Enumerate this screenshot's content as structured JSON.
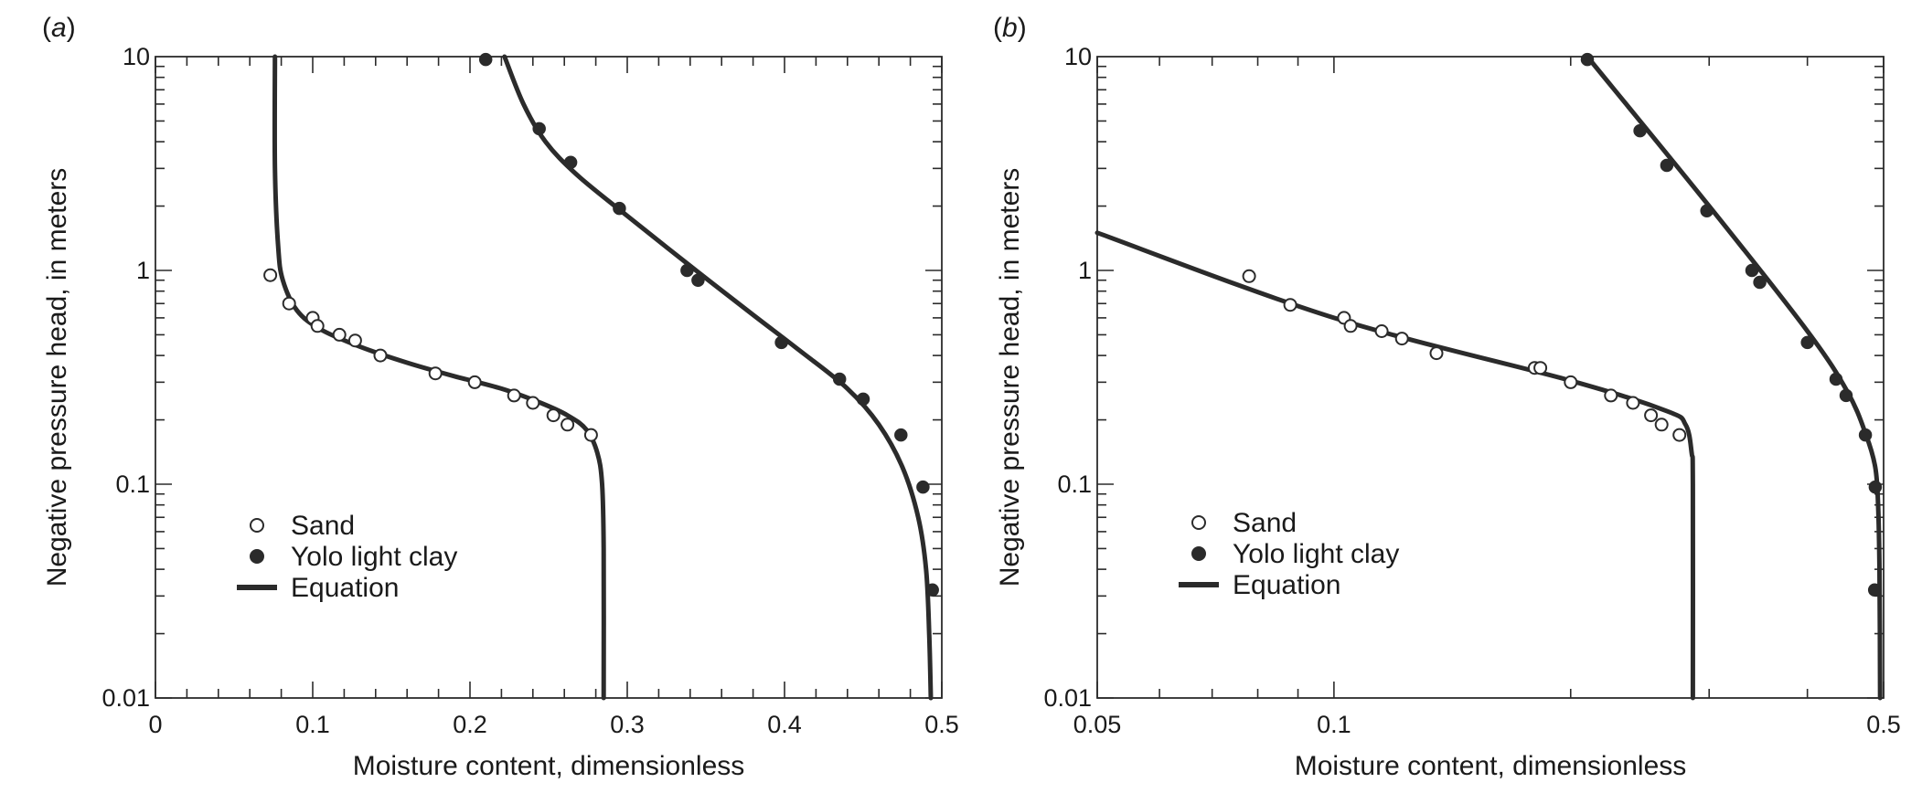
{
  "colors": {
    "ink": "#2b2b2b",
    "background": "#ffffff"
  },
  "chart_data": [
    {
      "panel_label": "a",
      "type": "scatter",
      "x_scale": "linear",
      "y_scale": "log",
      "xlabel": "Moisture content, dimensionless",
      "ylabel": "Negative pressure head, in meters",
      "xlim": [
        0,
        0.5
      ],
      "ylim": [
        0.01,
        10
      ],
      "x_ticks": [
        0,
        0.1,
        0.2,
        0.3,
        0.4,
        0.5
      ],
      "x_tick_labels": [
        "0",
        "0.1",
        "0.2",
        "0.3",
        "0.4",
        "0.5"
      ],
      "y_ticks": [
        0.01,
        0.1,
        1,
        10
      ],
      "y_tick_labels": [
        "0.01",
        "0.1",
        "1",
        "10"
      ],
      "grid": false,
      "legend_position": "bottom-left",
      "legend": [
        {
          "label": "Sand",
          "marker": "open-circle"
        },
        {
          "label": "Yolo light clay",
          "marker": "filled-circle"
        },
        {
          "label": "Equation",
          "marker": "line"
        }
      ],
      "series": [
        {
          "name": "Sand",
          "marker": "open-circle",
          "points": [
            [
              0.073,
              0.95
            ],
            [
              0.085,
              0.7
            ],
            [
              0.1,
              0.6
            ],
            [
              0.103,
              0.55
            ],
            [
              0.117,
              0.5
            ],
            [
              0.127,
              0.47
            ],
            [
              0.143,
              0.4
            ],
            [
              0.178,
              0.33
            ],
            [
              0.203,
              0.3
            ],
            [
              0.228,
              0.26
            ],
            [
              0.24,
              0.24
            ],
            [
              0.253,
              0.21
            ],
            [
              0.262,
              0.19
            ],
            [
              0.277,
              0.17
            ]
          ]
        },
        {
          "name": "Yolo light clay",
          "marker": "filled-circle",
          "points": [
            [
              0.21,
              9.7
            ],
            [
              0.244,
              4.6
            ],
            [
              0.264,
              3.2
            ],
            [
              0.295,
              1.95
            ],
            [
              0.338,
              1.0
            ],
            [
              0.345,
              0.9
            ],
            [
              0.398,
              0.46
            ],
            [
              0.435,
              0.31
            ],
            [
              0.45,
              0.25
            ],
            [
              0.474,
              0.17
            ],
            [
              0.488,
              0.097
            ],
            [
              0.494,
              0.032
            ]
          ]
        },
        {
          "name": "Equation",
          "marker": "line",
          "points": [
            [
              0.076,
              10
            ],
            [
              0.076,
              3
            ],
            [
              0.078,
              1.3
            ],
            [
              0.081,
              0.9
            ],
            [
              0.09,
              0.65
            ],
            [
              0.105,
              0.53
            ],
            [
              0.13,
              0.44
            ],
            [
              0.16,
              0.37
            ],
            [
              0.19,
              0.32
            ],
            [
              0.22,
              0.28
            ],
            [
              0.245,
              0.24
            ],
            [
              0.262,
              0.21
            ],
            [
              0.274,
              0.18
            ],
            [
              0.281,
              0.14
            ],
            [
              0.284,
              0.1
            ],
            [
              0.285,
              0.05
            ],
            [
              0.285,
              0.01
            ]
          ]
        },
        {
          "name": "Equation",
          "marker": "line",
          "points": [
            [
              0.222,
              10
            ],
            [
              0.234,
              6
            ],
            [
              0.248,
              4
            ],
            [
              0.268,
              2.8
            ],
            [
              0.3,
              1.8
            ],
            [
              0.34,
              1.05
            ],
            [
              0.38,
              0.62
            ],
            [
              0.41,
              0.42
            ],
            [
              0.44,
              0.28
            ],
            [
              0.46,
              0.19
            ],
            [
              0.475,
              0.12
            ],
            [
              0.485,
              0.07
            ],
            [
              0.49,
              0.04
            ],
            [
              0.492,
              0.02
            ],
            [
              0.493,
              0.01
            ]
          ]
        }
      ]
    },
    {
      "panel_label": "b",
      "type": "scatter",
      "x_scale": "log",
      "y_scale": "log",
      "xlabel": "Moisture content, dimensionless",
      "ylabel": "Negative pressure head, in meters",
      "xlim": [
        0.05,
        0.5
      ],
      "ylim": [
        0.01,
        10
      ],
      "x_ticks": [
        0.05,
        0.1,
        0.5
      ],
      "x_tick_labels": [
        "0.05",
        "0.1",
        "0.5"
      ],
      "y_ticks": [
        0.01,
        0.1,
        1,
        10
      ],
      "y_tick_labels": [
        "0.01",
        "0.1",
        "1",
        "10"
      ],
      "grid": false,
      "legend_position": "bottom-left",
      "legend": [
        {
          "label": "Sand",
          "marker": "open-circle"
        },
        {
          "label": "Yolo light clay",
          "marker": "filled-circle"
        },
        {
          "label": "Equation",
          "marker": "line"
        }
      ],
      "series": [
        {
          "name": "Sand",
          "marker": "open-circle",
          "points": [
            [
              0.078,
              0.94
            ],
            [
              0.088,
              0.69
            ],
            [
              0.103,
              0.6
            ],
            [
              0.105,
              0.55
            ],
            [
              0.115,
              0.52
            ],
            [
              0.122,
              0.48
            ],
            [
              0.135,
              0.41
            ],
            [
              0.18,
              0.35
            ],
            [
              0.183,
              0.35
            ],
            [
              0.2,
              0.3
            ],
            [
              0.225,
              0.26
            ],
            [
              0.24,
              0.24
            ],
            [
              0.253,
              0.21
            ],
            [
              0.261,
              0.19
            ],
            [
              0.275,
              0.17
            ]
          ]
        },
        {
          "name": "Yolo light clay",
          "marker": "filled-circle",
          "points": [
            [
              0.21,
              9.7
            ],
            [
              0.245,
              4.5
            ],
            [
              0.265,
              3.1
            ],
            [
              0.298,
              1.9
            ],
            [
              0.34,
              1.0
            ],
            [
              0.348,
              0.88
            ],
            [
              0.4,
              0.46
            ],
            [
              0.435,
              0.31
            ],
            [
              0.448,
              0.26
            ],
            [
              0.474,
              0.17
            ],
            [
              0.488,
              0.097
            ],
            [
              0.487,
              0.032
            ]
          ]
        },
        {
          "name": "Equation",
          "marker": "line",
          "points": [
            [
              0.05,
              1.5
            ],
            [
              0.1,
              0.6
            ],
            [
              0.2,
              0.305
            ],
            [
              0.265,
              0.22
            ],
            [
              0.28,
              0.19
            ],
            [
              0.285,
              0.14
            ],
            [
              0.286,
              0.1
            ],
            [
              0.286,
              0.01
            ]
          ]
        },
        {
          "name": "Equation",
          "marker": "line",
          "points": [
            [
              0.21,
              10
            ],
            [
              0.3,
              2.0
            ],
            [
              0.4,
              0.52
            ],
            [
              0.45,
              0.27
            ],
            [
              0.475,
              0.17
            ],
            [
              0.488,
              0.12
            ],
            [
              0.492,
              0.08
            ],
            [
              0.494,
              0.04
            ],
            [
              0.495,
              0.01
            ]
          ]
        }
      ]
    }
  ]
}
